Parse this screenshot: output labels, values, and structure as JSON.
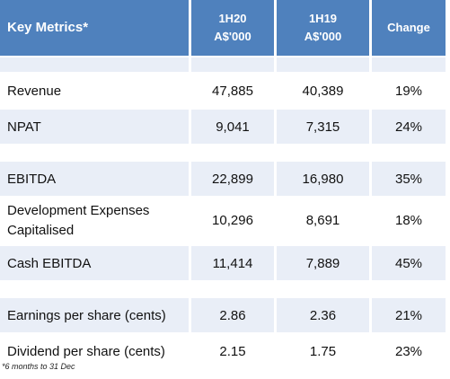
{
  "header": {
    "title": "Key Metrics*",
    "col_1h20_line1": "1H20",
    "col_1h20_line2": "A$'000",
    "col_1h19_line1": "1H19",
    "col_1h19_line2": "A$'000",
    "col_change": "Change"
  },
  "rows": {
    "revenue": {
      "label": "Revenue",
      "h20": "47,885",
      "h19": "40,389",
      "change": "19%"
    },
    "npat": {
      "label": "NPAT",
      "h20": "9,041",
      "h19": "7,315",
      "change": "24%"
    },
    "ebitda": {
      "label": "EBITDA",
      "h20": "22,899",
      "h19": "16,980",
      "change": "35%"
    },
    "dev_exp": {
      "label_line1": "Development Expenses",
      "label_line2": "Capitalised",
      "h20": "10,296",
      "h19": "8,691",
      "change": "18%"
    },
    "cash_ebitda": {
      "label": "Cash EBITDA",
      "h20": "11,414",
      "h19": "7,889",
      "change": "45%"
    },
    "eps": {
      "label": "Earnings per share (cents)",
      "h20": "2.86",
      "h19": "2.36",
      "change": "21%"
    },
    "dps": {
      "label": "Dividend per share (cents)",
      "h20": "2.15",
      "h19": "1.75",
      "change": "23%"
    }
  },
  "footnote": "*6 months to 31 Dec",
  "colors": {
    "header_bg": "#4f81bd",
    "row_light": "#e9eef7",
    "row_white": "#ffffff"
  }
}
